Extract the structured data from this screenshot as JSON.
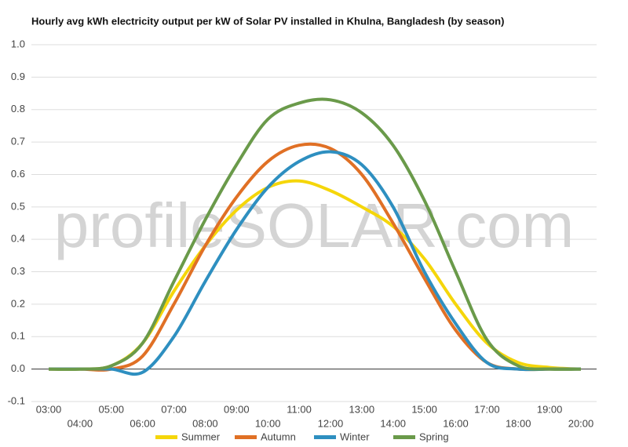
{
  "chart_data": {
    "type": "line",
    "title": "Hourly avg kWh electricity output per kW of Solar PV installed in Khulna, Bangladesh (by season)",
    "watermark": "profileSOLAR.com",
    "categories": [
      "03:00",
      "04:00",
      "05:00",
      "06:00",
      "07:00",
      "08:00",
      "09:00",
      "10:00",
      "11:00",
      "12:00",
      "13:00",
      "14:00",
      "15:00",
      "16:00",
      "17:00",
      "18:00",
      "19:00",
      "20:00"
    ],
    "series": [
      {
        "name": "Summer",
        "color": "#f5d60a",
        "values": [
          0,
          0,
          0.01,
          0.08,
          0.24,
          0.38,
          0.49,
          0.56,
          0.58,
          0.55,
          0.5,
          0.44,
          0.34,
          0.2,
          0.08,
          0.02,
          0.005,
          0
        ]
      },
      {
        "name": "Autumn",
        "color": "#e07025",
        "values": [
          0,
          0,
          0,
          0.04,
          0.2,
          0.38,
          0.53,
          0.64,
          0.69,
          0.68,
          0.6,
          0.45,
          0.28,
          0.12,
          0.02,
          0,
          0,
          0
        ]
      },
      {
        "name": "Winter",
        "color": "#2e8fc0",
        "values": [
          0,
          0,
          0,
          -0.01,
          0.1,
          0.27,
          0.43,
          0.56,
          0.64,
          0.67,
          0.63,
          0.5,
          0.3,
          0.14,
          0.02,
          0,
          0,
          0
        ]
      },
      {
        "name": "Spring",
        "color": "#6a9a4a",
        "values": [
          0,
          0,
          0.01,
          0.08,
          0.27,
          0.46,
          0.63,
          0.77,
          0.82,
          0.83,
          0.79,
          0.69,
          0.52,
          0.3,
          0.09,
          0.01,
          0,
          0
        ]
      }
    ],
    "ylim": [
      -0.1,
      1.0
    ],
    "yticks": [
      -0.1,
      {
        "value": 0,
        "label": "0.0"
      },
      0.1,
      0.2,
      0.3,
      0.4,
      0.5,
      0.6,
      0.7,
      0.8,
      0.9,
      {
        "value": 1,
        "label": "1.0"
      }
    ],
    "grid": true,
    "legend": "bottom"
  }
}
